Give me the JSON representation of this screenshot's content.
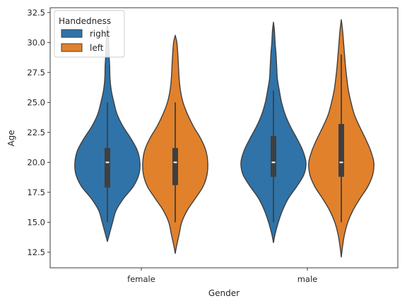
{
  "chart_data": {
    "type": "violin",
    "title": "",
    "xlabel": "Gender",
    "ylabel": "Age",
    "categories": [
      "female",
      "male"
    ],
    "ylim": [
      11.2,
      32.9
    ],
    "yticks": [
      12.5,
      15.0,
      17.5,
      20.0,
      22.5,
      25.0,
      27.5,
      30.0,
      32.5
    ],
    "ytick_labels": [
      "12.5",
      "15.0",
      "17.5",
      "20.0",
      "22.5",
      "25.0",
      "27.5",
      "30.0",
      "32.5"
    ],
    "grid": false,
    "legend": {
      "title": "Handedness",
      "placement": "top-left"
    },
    "series": [
      {
        "name": "right",
        "color": "#2f73a8",
        "violins": [
          {
            "category": "female",
            "min": 13.4,
            "max": 31.4,
            "whisker_low": 15.0,
            "q1": 17.9,
            "median": 20.0,
            "q3": 21.2,
            "whisker_high": 25.0,
            "density": [
              [
                13.4,
                0.0
              ],
              [
                14.0,
                0.06
              ],
              [
                15.0,
                0.16
              ],
              [
                16.0,
                0.27
              ],
              [
                17.0,
                0.5
              ],
              [
                18.0,
                0.8
              ],
              [
                19.0,
                0.97
              ],
              [
                20.0,
                1.0
              ],
              [
                21.0,
                0.92
              ],
              [
                22.0,
                0.72
              ],
              [
                23.0,
                0.48
              ],
              [
                24.0,
                0.3
              ],
              [
                25.0,
                0.2
              ],
              [
                26.0,
                0.12
              ],
              [
                27.0,
                0.08
              ],
              [
                28.0,
                0.07
              ],
              [
                29.0,
                0.05
              ],
              [
                30.0,
                0.04
              ],
              [
                31.0,
                0.02
              ],
              [
                31.4,
                0.0
              ]
            ]
          },
          {
            "category": "male",
            "min": 13.3,
            "max": 31.7,
            "whisker_low": 15.0,
            "q1": 18.8,
            "median": 20.0,
            "q3": 22.2,
            "whisker_high": 26.0,
            "density": [
              [
                13.3,
                0.0
              ],
              [
                14.0,
                0.05
              ],
              [
                15.0,
                0.15
              ],
              [
                16.0,
                0.28
              ],
              [
                17.0,
                0.46
              ],
              [
                18.0,
                0.72
              ],
              [
                19.0,
                0.94
              ],
              [
                20.0,
                1.0
              ],
              [
                21.0,
                0.9
              ],
              [
                22.0,
                0.72
              ],
              [
                23.0,
                0.52
              ],
              [
                24.0,
                0.36
              ],
              [
                25.0,
                0.25
              ],
              [
                26.0,
                0.18
              ],
              [
                27.0,
                0.12
              ],
              [
                28.0,
                0.1
              ],
              [
                29.0,
                0.08
              ],
              [
                30.0,
                0.05
              ],
              [
                31.0,
                0.03
              ],
              [
                31.7,
                0.0
              ]
            ]
          }
        ]
      },
      {
        "name": "left",
        "color": "#e1812c",
        "violins": [
          {
            "category": "female",
            "min": 12.4,
            "max": 30.6,
            "whisker_low": 15.0,
            "q1": 18.1,
            "median": 20.0,
            "q3": 21.2,
            "whisker_high": 25.0,
            "density": [
              [
                12.4,
                0.0
              ],
              [
                13.0,
                0.04
              ],
              [
                14.0,
                0.12
              ],
              [
                15.0,
                0.2
              ],
              [
                16.0,
                0.37
              ],
              [
                17.0,
                0.62
              ],
              [
                18.0,
                0.86
              ],
              [
                19.0,
                0.98
              ],
              [
                20.0,
                1.0
              ],
              [
                21.0,
                0.94
              ],
              [
                22.0,
                0.78
              ],
              [
                23.0,
                0.56
              ],
              [
                24.0,
                0.38
              ],
              [
                25.0,
                0.24
              ],
              [
                26.0,
                0.16
              ],
              [
                27.0,
                0.12
              ],
              [
                28.0,
                0.1
              ],
              [
                29.0,
                0.08
              ],
              [
                30.0,
                0.05
              ],
              [
                30.6,
                0.0
              ]
            ]
          },
          {
            "category": "male",
            "min": 12.1,
            "max": 31.9,
            "whisker_low": 15.0,
            "q1": 18.8,
            "median": 20.0,
            "q3": 23.2,
            "whisker_high": 29.0,
            "density": [
              [
                12.1,
                0.0
              ],
              [
                13.0,
                0.04
              ],
              [
                14.0,
                0.1
              ],
              [
                15.0,
                0.2
              ],
              [
                16.0,
                0.36
              ],
              [
                17.0,
                0.58
              ],
              [
                18.0,
                0.82
              ],
              [
                19.0,
                0.97
              ],
              [
                20.0,
                1.0
              ],
              [
                21.0,
                0.9
              ],
              [
                22.0,
                0.74
              ],
              [
                23.0,
                0.56
              ],
              [
                24.0,
                0.4
              ],
              [
                25.0,
                0.3
              ],
              [
                26.0,
                0.22
              ],
              [
                27.0,
                0.17
              ],
              [
                28.0,
                0.13
              ],
              [
                29.0,
                0.1
              ],
              [
                30.0,
                0.07
              ],
              [
                31.0,
                0.04
              ],
              [
                31.9,
                0.0
              ]
            ]
          }
        ]
      }
    ]
  }
}
